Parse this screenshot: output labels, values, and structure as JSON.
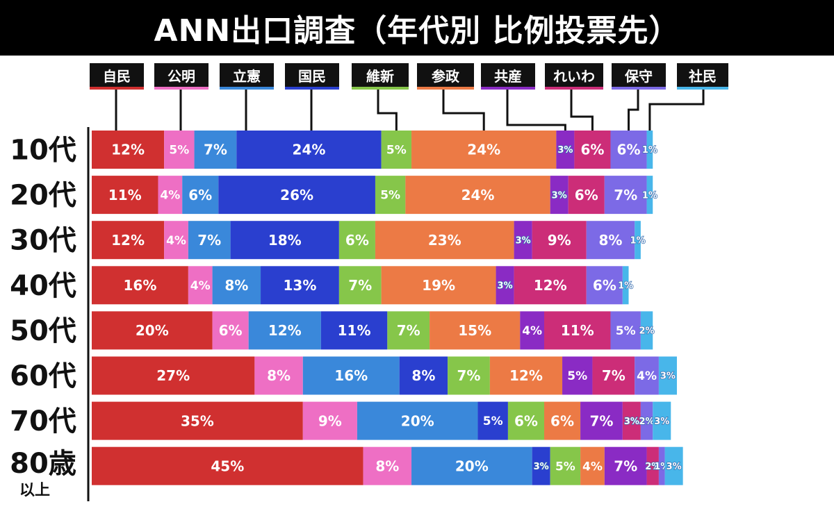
{
  "chart_data": {
    "type": "bar",
    "orientation": "horizontal",
    "stacked": true,
    "title": "ANN出口調査（年代別 比例投票先）",
    "categories": [
      "10代",
      "20代",
      "30代",
      "40代",
      "50代",
      "60代",
      "70代",
      "80歳"
    ],
    "category_sublabels": [
      "",
      "",
      "",
      "",
      "",
      "",
      "",
      "以上"
    ],
    "series": [
      {
        "name": "自民",
        "color": "#d03030",
        "values": [
          12,
          11,
          12,
          16,
          20,
          27,
          35,
          45
        ]
      },
      {
        "name": "公明",
        "color": "#ee6fc4",
        "values": [
          5,
          4,
          4,
          4,
          6,
          8,
          9,
          8
        ]
      },
      {
        "name": "立憲",
        "color": "#3a88da",
        "values": [
          7,
          6,
          7,
          8,
          12,
          16,
          20,
          20
        ]
      },
      {
        "name": "国民",
        "color": "#2a3fcf",
        "values": [
          24,
          26,
          18,
          13,
          11,
          8,
          5,
          3
        ]
      },
      {
        "name": "維新",
        "color": "#86c64a",
        "values": [
          5,
          5,
          6,
          7,
          7,
          7,
          6,
          5
        ]
      },
      {
        "name": "参政",
        "color": "#ec7a45",
        "values": [
          24,
          24,
          23,
          19,
          15,
          12,
          6,
          4
        ]
      },
      {
        "name": "共産",
        "color": "#8a2bc4",
        "values": [
          3,
          3,
          3,
          3,
          4,
          5,
          7,
          7
        ]
      },
      {
        "name": "れいわ",
        "color": "#cc2d78",
        "values": [
          6,
          6,
          9,
          12,
          11,
          7,
          3,
          2
        ]
      },
      {
        "name": "保守",
        "color": "#7c6ae6",
        "values": [
          6,
          7,
          8,
          6,
          5,
          4,
          2,
          1
        ]
      },
      {
        "name": "社民",
        "color": "#48b6ea",
        "values": [
          1,
          1,
          1,
          1,
          2,
          3,
          3,
          3
        ]
      }
    ],
    "value_suffix": "%",
    "grid": false,
    "legend": "top"
  }
}
